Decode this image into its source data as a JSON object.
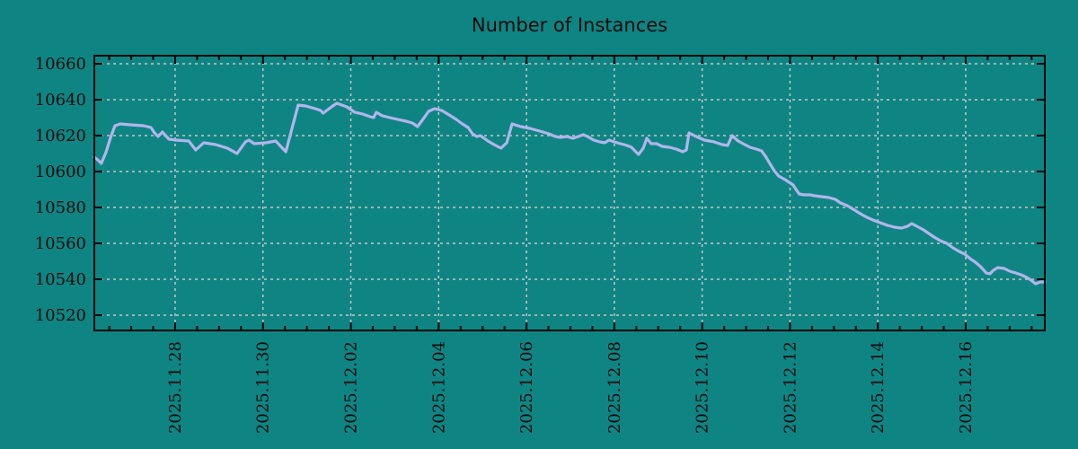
{
  "window": {
    "background": "#0f8583"
  },
  "chart_data": {
    "type": "line",
    "title": "Number of Instances",
    "legend": "none",
    "grid": {
      "on": true,
      "color": "#c6c6c6",
      "dash": "3,4"
    },
    "axis_color": "#000000",
    "text_color": "#0b0b0b",
    "x_axis": {
      "unit": "days since 2025-11-26 00:00",
      "lim": [
        0.16,
        21.8
      ],
      "minor_tick_interval": 0.5,
      "major_ticks": [
        {
          "t": 2,
          "label": "2025.11.28"
        },
        {
          "t": 4,
          "label": "2025.11.30"
        },
        {
          "t": 6,
          "label": "2025.12.02"
        },
        {
          "t": 8,
          "label": "2025.12.04"
        },
        {
          "t": 10,
          "label": "2025.12.06"
        },
        {
          "t": 12,
          "label": "2025.12.08"
        },
        {
          "t": 14,
          "label": "2025.12.10"
        },
        {
          "t": 16,
          "label": "2025.12.12"
        },
        {
          "t": 18,
          "label": "2025.12.14"
        },
        {
          "t": 20,
          "label": "2025.12.16"
        }
      ]
    },
    "y_axis": {
      "lim": [
        10511.5,
        10664.5
      ],
      "ticks": [
        10520,
        10540,
        10560,
        10580,
        10600,
        10620,
        10640,
        10660
      ]
    },
    "series": [
      {
        "name": "instances",
        "color": "#b1b5ec",
        "points": [
          [
            0.16,
            10608
          ],
          [
            0.26,
            10606
          ],
          [
            0.32,
            10604.5
          ],
          [
            0.43,
            10611
          ],
          [
            0.53,
            10619
          ],
          [
            0.63,
            10625.5
          ],
          [
            0.75,
            10626.5
          ],
          [
            0.98,
            10626
          ],
          [
            1.28,
            10625.5
          ],
          [
            1.45,
            10624.5
          ],
          [
            1.53,
            10621.5
          ],
          [
            1.61,
            10619.5
          ],
          [
            1.71,
            10622
          ],
          [
            1.86,
            10618
          ],
          [
            2.02,
            10617.5
          ],
          [
            2.31,
            10617
          ],
          [
            2.47,
            10612
          ],
          [
            2.65,
            10616
          ],
          [
            2.92,
            10615
          ],
          [
            3.19,
            10613
          ],
          [
            3.41,
            10610
          ],
          [
            3.6,
            10616.5
          ],
          [
            3.68,
            10617.5
          ],
          [
            3.8,
            10615.5
          ],
          [
            4.07,
            10616
          ],
          [
            4.29,
            10617
          ],
          [
            4.52,
            10611
          ],
          [
            4.8,
            10637
          ],
          [
            4.97,
            10636.5
          ],
          [
            5.19,
            10635
          ],
          [
            5.31,
            10634
          ],
          [
            5.37,
            10632.5
          ],
          [
            5.56,
            10636
          ],
          [
            5.68,
            10638
          ],
          [
            5.91,
            10636
          ],
          [
            6.09,
            10633
          ],
          [
            6.27,
            10632
          ],
          [
            6.44,
            10630.5
          ],
          [
            6.52,
            10630
          ],
          [
            6.58,
            10633
          ],
          [
            6.72,
            10631
          ],
          [
            6.89,
            10630
          ],
          [
            7.07,
            10629
          ],
          [
            7.26,
            10628
          ],
          [
            7.4,
            10627
          ],
          [
            7.52,
            10625
          ],
          [
            7.64,
            10629
          ],
          [
            7.77,
            10633.5
          ],
          [
            7.91,
            10635
          ],
          [
            8.07,
            10634
          ],
          [
            8.24,
            10631.5
          ],
          [
            8.4,
            10629
          ],
          [
            8.54,
            10626.5
          ],
          [
            8.67,
            10624.5
          ],
          [
            8.77,
            10621
          ],
          [
            8.87,
            10619.5
          ],
          [
            8.95,
            10620
          ],
          [
            9.12,
            10617
          ],
          [
            9.26,
            10615
          ],
          [
            9.42,
            10613
          ],
          [
            9.55,
            10616
          ],
          [
            9.67,
            10626.5
          ],
          [
            9.87,
            10625
          ],
          [
            10.08,
            10624
          ],
          [
            10.3,
            10622.5
          ],
          [
            10.51,
            10621
          ],
          [
            10.65,
            10619.5
          ],
          [
            10.77,
            10619
          ],
          [
            10.92,
            10619.5
          ],
          [
            11.06,
            10618.5
          ],
          [
            11.18,
            10619.5
          ],
          [
            11.29,
            10620.5
          ],
          [
            11.39,
            10619.5
          ],
          [
            11.53,
            10617.5
          ],
          [
            11.67,
            10616.5
          ],
          [
            11.78,
            10616
          ],
          [
            11.88,
            10617.5
          ],
          [
            12.0,
            10616.5
          ],
          [
            12.14,
            10615.5
          ],
          [
            12.29,
            10614.5
          ],
          [
            12.39,
            10613.5
          ],
          [
            12.47,
            10611.5
          ],
          [
            12.55,
            10609.5
          ],
          [
            12.66,
            10613
          ],
          [
            12.74,
            10618.5
          ],
          [
            12.84,
            10615.5
          ],
          [
            12.96,
            10615.5
          ],
          [
            13.09,
            10614
          ],
          [
            13.25,
            10613.5
          ],
          [
            13.41,
            10612.5
          ],
          [
            13.56,
            10611
          ],
          [
            13.64,
            10612
          ],
          [
            13.7,
            10621.5
          ],
          [
            13.86,
            10619.5
          ],
          [
            14.05,
            10617.5
          ],
          [
            14.27,
            10616.5
          ],
          [
            14.45,
            10615
          ],
          [
            14.58,
            10614.5
          ],
          [
            14.68,
            10620
          ],
          [
            14.82,
            10617
          ],
          [
            14.97,
            10615
          ],
          [
            15.09,
            10613.5
          ],
          [
            15.23,
            10612.5
          ],
          [
            15.35,
            10611.5
          ],
          [
            15.44,
            10608.5
          ],
          [
            15.54,
            10604.5
          ],
          [
            15.64,
            10600.5
          ],
          [
            15.74,
            10597.5
          ],
          [
            15.85,
            10596
          ],
          [
            15.95,
            10594.5
          ],
          [
            16.07,
            10592.5
          ],
          [
            16.15,
            10589.5
          ],
          [
            16.21,
            10587.5
          ],
          [
            16.32,
            10587
          ],
          [
            16.46,
            10587
          ],
          [
            16.56,
            10586.5
          ],
          [
            16.72,
            10586
          ],
          [
            16.89,
            10585.5
          ],
          [
            17.03,
            10584.5
          ],
          [
            17.15,
            10582.5
          ],
          [
            17.3,
            10581
          ],
          [
            17.44,
            10579
          ],
          [
            17.6,
            10576.5
          ],
          [
            17.75,
            10574.5
          ],
          [
            17.89,
            10573
          ],
          [
            18.05,
            10571.5
          ],
          [
            18.22,
            10570
          ],
          [
            18.38,
            10569
          ],
          [
            18.54,
            10568.5
          ],
          [
            18.67,
            10569.5
          ],
          [
            18.77,
            10571
          ],
          [
            18.89,
            10569.5
          ],
          [
            19.04,
            10567.5
          ],
          [
            19.16,
            10565.5
          ],
          [
            19.28,
            10563.5
          ],
          [
            19.42,
            10561.5
          ],
          [
            19.57,
            10560
          ],
          [
            19.71,
            10557.5
          ],
          [
            19.85,
            10555.5
          ],
          [
            19.98,
            10554
          ],
          [
            20.1,
            10551.5
          ],
          [
            20.22,
            10549.5
          ],
          [
            20.34,
            10547
          ],
          [
            20.47,
            10543.5
          ],
          [
            20.55,
            10543
          ],
          [
            20.63,
            10545
          ],
          [
            20.73,
            10546.5
          ],
          [
            20.88,
            10546
          ],
          [
            21.0,
            10544.5
          ],
          [
            21.14,
            10543.5
          ],
          [
            21.26,
            10542.5
          ],
          [
            21.39,
            10541
          ],
          [
            21.49,
            10539.5
          ],
          [
            21.59,
            10537.5
          ],
          [
            21.7,
            10538.5
          ],
          [
            21.8,
            10538.5
          ]
        ]
      }
    ]
  }
}
